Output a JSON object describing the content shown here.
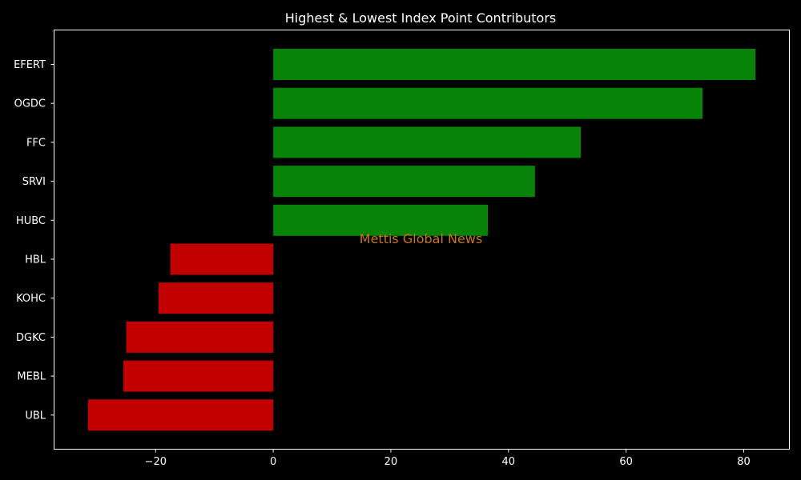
{
  "chart_data": {
    "type": "bar",
    "orientation": "horizontal",
    "title": "Highest & Lowest Index Point Contributors",
    "xlabel": "",
    "ylabel": "",
    "categories": [
      "EFERT",
      "OGDC",
      "FFC",
      "SRVI",
      "HUBC",
      "HBL",
      "KOHC",
      "DGKC",
      "MEBL",
      "UBL"
    ],
    "values": [
      82.0,
      73.0,
      52.3,
      44.5,
      36.5,
      -17.5,
      -19.5,
      -25.0,
      -25.5,
      -31.5
    ],
    "xlim": [
      -37.2,
      87.7
    ],
    "xticks": [
      -20,
      0,
      20,
      40,
      60,
      80
    ],
    "xtick_labels": [
      "−20",
      "0",
      "20",
      "40",
      "60",
      "80"
    ],
    "grid": false,
    "watermark": "Mettis Global News",
    "colors": {
      "positive": "#078407",
      "negative": "#c20000",
      "background": "#000000",
      "text": "#ffffff",
      "axes": "#ffffff",
      "watermark": "#c8751e"
    }
  }
}
